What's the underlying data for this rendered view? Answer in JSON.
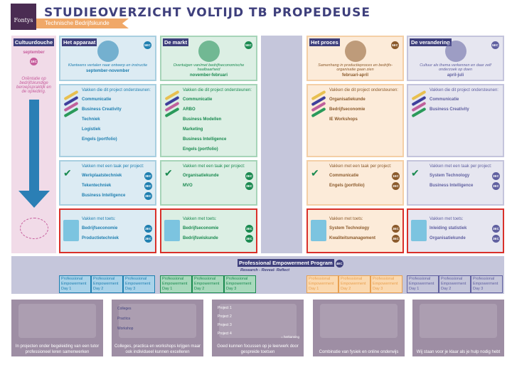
{
  "header": {
    "logo": "Fontys",
    "title": "STUDIEOVERZICHT VOLTIJD TB PROPEDEUSE",
    "subtitle": "Technische Bedrijfskunde"
  },
  "cultuurdouche": {
    "label": "Cultuurdouche",
    "period": "september",
    "ec": "1EC",
    "desc": "Oriëntatie op bedrijfskundige beroepspraktijk en de opleiding."
  },
  "columns": [
    {
      "label": "Het apparaat",
      "ec": "5EC",
      "desc": "Klantwens vertalen naar ontwerp en instructie",
      "period": "september-november",
      "color": "#1f7fb0",
      "bg": "#dcebf3",
      "border": "#a8cfe0",
      "icon": "gear-box-icon",
      "support_title": "Vakken die dit project ondersteunen:",
      "support": [
        "Communicatie",
        "Business Creativity",
        "Techniek",
        "Logistiek",
        "Engels (portfolio)"
      ],
      "task_title": "Vakken met een taak per project:",
      "tasks": [
        {
          "name": "Werkplaatstechniek",
          "ec": "3EC"
        },
        {
          "name": "Tekentechniek",
          "ec": "3EC"
        },
        {
          "name": "Business Intelligence",
          "ec": "3EC"
        }
      ],
      "test_title": "Vakken met toets:",
      "tests": [
        {
          "name": "Bedrijfseconomie",
          "ec": "3EC"
        },
        {
          "name": "Productietechniek",
          "ec": "3EC"
        }
      ]
    },
    {
      "label": "De markt",
      "ec": "5EC",
      "desc": "Overtuigen van/met bedrijfseconomische haalbaarheid",
      "period": "november-februari",
      "color": "#1a8a50",
      "bg": "#dcefe4",
      "border": "#a6d4b8",
      "icon": "people-magnifier-icon",
      "support_title": "Vakken die dit project ondersteunen:",
      "support": [
        "Communicatie",
        "ARBO",
        "Business Modellen",
        "Marketing",
        "Business Intelligence",
        "Engels (portfolio)"
      ],
      "task_title": "Vakken met een taak per project:",
      "tasks": [
        {
          "name": "Organisatiekunde",
          "ec": "2EC"
        },
        {
          "name": "MVO",
          "ec": "3EC"
        }
      ],
      "test_title": "Vakken met toets:",
      "tests": [
        {
          "name": "Bedrijfseconomie",
          "ec": "3EC"
        },
        {
          "name": "Bedrijfswiskunde",
          "ec": "3EC"
        }
      ]
    },
    {
      "label": "Het proces",
      "ec": "5EC",
      "desc": "Samenhang in productieproces en bedrijfs-organisatie gaan zien",
      "period": "februari-april",
      "color": "#8b5a2b",
      "bg": "#fcebd9",
      "border": "#f4cfa6",
      "icon": "gears-arrows-icon",
      "support_title": "Vakken die dit project ondersteunen:",
      "support": [
        "Organisatiekunde",
        "Bedrijfseconomie",
        "IE Workshops"
      ],
      "task_title": "Vakken met een taak per project:",
      "tasks": [
        {
          "name": "Communicatie",
          "ec": "1EC"
        },
        {
          "name": "Engels (portfolio)",
          "ec": "2EC"
        }
      ],
      "test_title": "Vakken met toets:",
      "tests": [
        {
          "name": "System Technology",
          "ec": "3EC"
        },
        {
          "name": "Kwaliteitsmanagement",
          "ec": "3EC"
        }
      ]
    },
    {
      "label": "De verandering",
      "ec": "5EC",
      "desc": "Cultuur als thema verkennen en daar zelf onderzoek op doen",
      "period": "april-juli",
      "color": "#6060a0",
      "bg": "#e6e6f0",
      "border": "#c4c4dc",
      "icon": "head-gear-magnifier-icon",
      "support_title": "Vakken die dit project ondersteunen:",
      "support": [
        "Communicatie",
        "Business Creativity"
      ],
      "task_title": "Vakken met een taak per project:",
      "tasks": [
        {
          "name": "System Technology",
          "ec": "3EC"
        },
        {
          "name": "Business Intelligence",
          "ec": "3EC"
        }
      ],
      "test_title": "Vakken met toets:",
      "tests": [
        {
          "name": "Inleiding statistiek",
          "ec": "3EC"
        },
        {
          "name": "Organisatiekunde",
          "ec": "3EC"
        }
      ]
    }
  ],
  "pep": {
    "label": "Professional Empowerment Program",
    "ec": "4EC",
    "sub": "Research - Reveal- Reflect",
    "days": [
      "Professional Empowerment Day 1",
      "Professional Empowerment Day 2",
      "Professional Empowerment Day 3"
    ]
  },
  "bottom": [
    {
      "caption": "In projecten onder begeleiding van een tutor professioneel leren samenwerken"
    },
    {
      "caption": "Colleges, practica en workshops krijgen maar ook individueel kunnen excelleren",
      "items": [
        "Colleges",
        "Practica",
        "Workshop"
      ]
    },
    {
      "caption": "Goed kunnen focussen op je leerwerk door gespreide toetsen",
      "items": [
        "Project 1",
        "Project 2",
        "Project 3",
        "Project 4"
      ],
      "legend": "= herkansing"
    },
    {
      "caption": "Combinatie van fysiek en online onderwijs"
    },
    {
      "caption": "Wij staan voor je klaar als je hulp nodig hebt"
    }
  ]
}
